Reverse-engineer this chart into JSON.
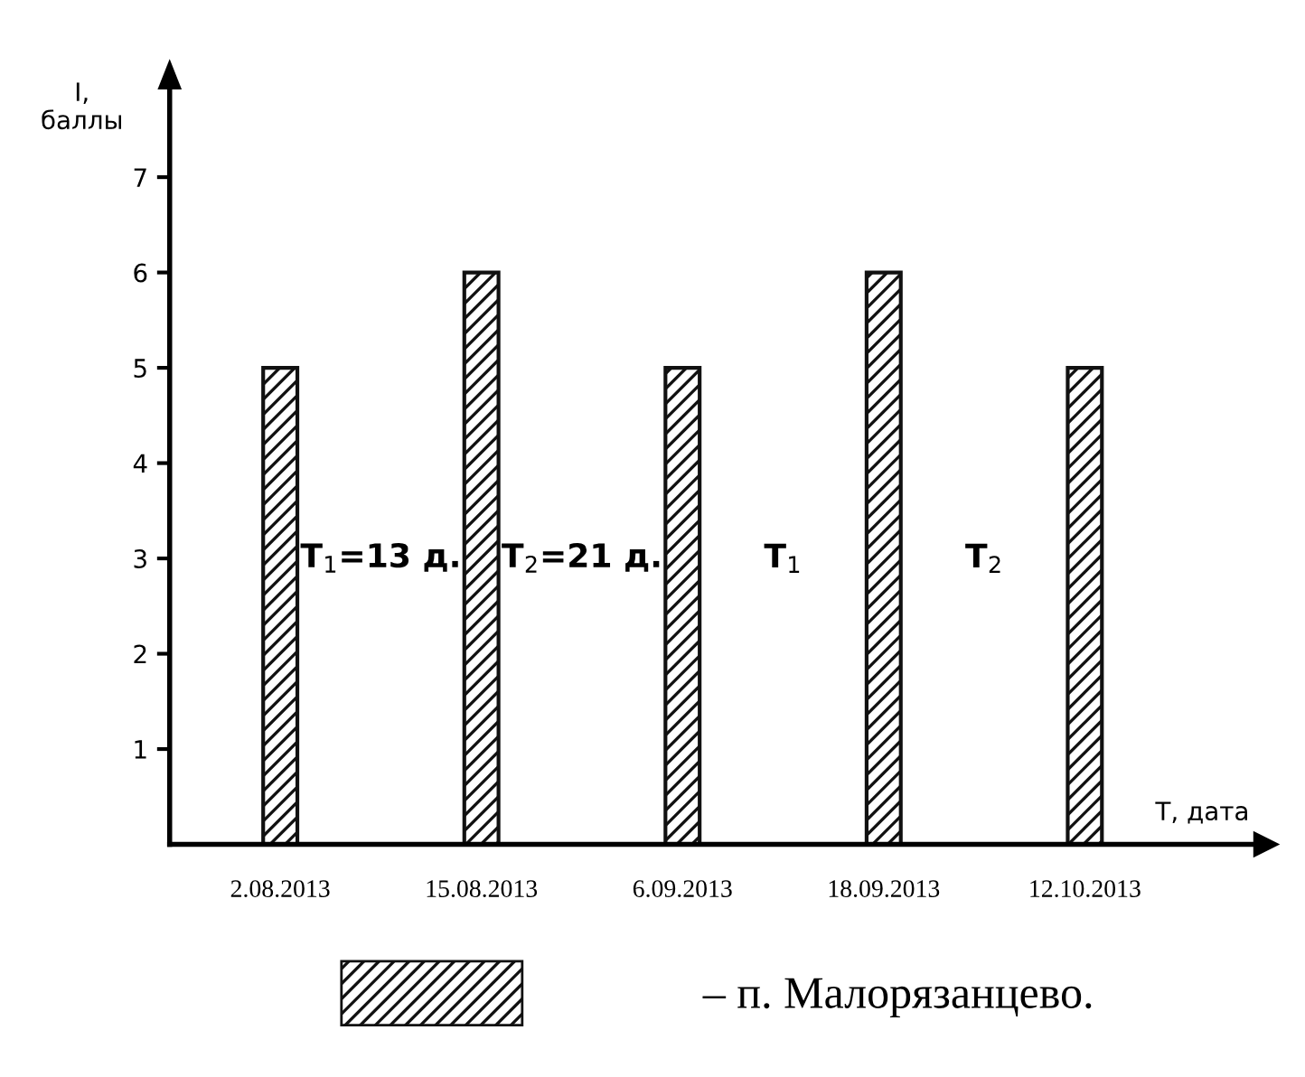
{
  "chart_data": {
    "type": "bar",
    "ylabel": "I,\nбаллы",
    "xlabel": "Т, дата",
    "categories": [
      "2.08.2013",
      "15.08.2013",
      "6.09.2013",
      "18.09.2013",
      "12.10.2013"
    ],
    "series": [
      {
        "name": "– п. Малорязанцево.",
        "color": "#111111",
        "values": [
          5,
          6,
          5,
          6,
          5
        ]
      }
    ],
    "ylim": [
      0,
      8
    ],
    "yticks": [
      1,
      2,
      3,
      4,
      5,
      6,
      7
    ],
    "annotations": [
      "Т$_{1}$=13 д.",
      "Т$_{2}$=21 д.",
      "Т$_{1}$",
      "Т$_{2}$"
    ],
    "grid": false,
    "legend": "bottom"
  }
}
